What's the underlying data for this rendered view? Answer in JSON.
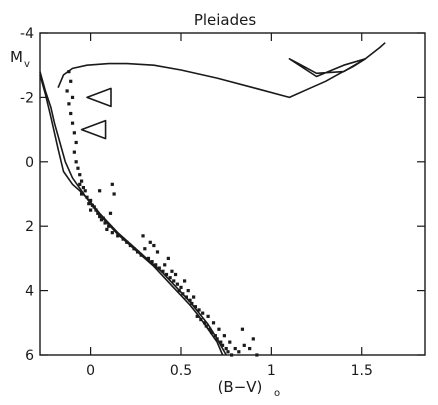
{
  "chart_data": {
    "type": "scatter",
    "title": "Pleiades",
    "xlabel": "(B−V)",
    "xlabel_subscript": "o",
    "ylabel": "M",
    "ylabel_subscript": "v",
    "xlim": [
      -0.28,
      1.85
    ],
    "ylim": [
      6,
      -4
    ],
    "y_inverted": true,
    "grid": false,
    "legend": "none",
    "x_ticks": [
      {
        "value": 0,
        "label": "0"
      },
      {
        "value": 0.5,
        "label": "0.5"
      },
      {
        "value": 1,
        "label": "1"
      },
      {
        "value": 1.5,
        "label": "1.5"
      }
    ],
    "y_ticks": [
      {
        "value": -4,
        "label": "-4"
      },
      {
        "value": -2,
        "label": "-2"
      },
      {
        "value": 0,
        "label": "0"
      },
      {
        "value": 2,
        "label": "2"
      },
      {
        "value": 4,
        "label": "4"
      },
      {
        "value": 6,
        "label": "6"
      }
    ],
    "series": [
      {
        "kind": "points",
        "color": "#1a1a1a",
        "points": [
          [
            -0.12,
            -2.8
          ],
          [
            -0.11,
            -2.5
          ],
          [
            -0.13,
            -2.2
          ],
          [
            -0.1,
            -2.0
          ],
          [
            -0.12,
            -1.8
          ],
          [
            -0.11,
            -1.5
          ],
          [
            -0.1,
            -1.2
          ],
          [
            -0.09,
            -0.9
          ],
          [
            -0.08,
            -0.6
          ],
          [
            -0.09,
            -0.3
          ],
          [
            -0.08,
            0.0
          ],
          [
            -0.07,
            0.2
          ],
          [
            -0.06,
            0.4
          ],
          [
            -0.05,
            0.6
          ],
          [
            -0.06,
            0.7
          ],
          [
            -0.04,
            0.8
          ],
          [
            -0.03,
            0.9
          ],
          [
            -0.05,
            1.0
          ],
          [
            -0.02,
            1.1
          ],
          [
            0.0,
            1.2
          ],
          [
            -0.01,
            1.3
          ],
          [
            0.01,
            1.35
          ],
          [
            0.02,
            1.4
          ],
          [
            0.0,
            1.5
          ],
          [
            0.03,
            1.5
          ],
          [
            0.04,
            1.6
          ],
          [
            0.05,
            1.7
          ],
          [
            0.06,
            1.8
          ],
          [
            0.07,
            1.75
          ],
          [
            0.08,
            1.9
          ],
          [
            0.1,
            2.0
          ],
          [
            0.09,
            2.1
          ],
          [
            0.12,
            2.2
          ],
          [
            0.11,
            1.6
          ],
          [
            0.13,
            1.0
          ],
          [
            0.12,
            0.7
          ],
          [
            0.05,
            0.9
          ],
          [
            0.15,
            2.3
          ],
          [
            0.18,
            2.4
          ],
          [
            0.2,
            2.5
          ],
          [
            0.22,
            2.6
          ],
          [
            0.24,
            2.7
          ],
          [
            0.26,
            2.8
          ],
          [
            0.28,
            2.9
          ],
          [
            0.3,
            2.7
          ],
          [
            0.32,
            3.0
          ],
          [
            0.34,
            3.1
          ],
          [
            0.36,
            3.2
          ],
          [
            0.33,
            2.5
          ],
          [
            0.35,
            2.6
          ],
          [
            0.38,
            3.3
          ],
          [
            0.4,
            3.4
          ],
          [
            0.42,
            3.5
          ],
          [
            0.41,
            3.2
          ],
          [
            0.44,
            3.6
          ],
          [
            0.45,
            3.4
          ],
          [
            0.46,
            3.7
          ],
          [
            0.48,
            3.8
          ],
          [
            0.47,
            3.5
          ],
          [
            0.5,
            3.9
          ],
          [
            0.49,
            4.0
          ],
          [
            0.51,
            4.1
          ],
          [
            0.52,
            3.7
          ],
          [
            0.53,
            4.2
          ],
          [
            0.55,
            4.3
          ],
          [
            0.54,
            4.0
          ],
          [
            0.56,
            4.4
          ],
          [
            0.58,
            4.5
          ],
          [
            0.57,
            4.2
          ],
          [
            0.6,
            4.6
          ],
          [
            0.59,
            4.8
          ],
          [
            0.61,
            4.9
          ],
          [
            0.62,
            4.7
          ],
          [
            0.63,
            5.0
          ],
          [
            0.64,
            5.1
          ],
          [
            0.65,
            4.8
          ],
          [
            0.66,
            5.2
          ],
          [
            0.67,
            5.3
          ],
          [
            0.68,
            5.0
          ],
          [
            0.69,
            5.4
          ],
          [
            0.7,
            5.5
          ],
          [
            0.71,
            5.2
          ],
          [
            0.72,
            5.6
          ],
          [
            0.73,
            5.7
          ],
          [
            0.74,
            5.4
          ],
          [
            0.75,
            5.8
          ],
          [
            0.76,
            5.9
          ],
          [
            0.77,
            5.6
          ],
          [
            0.78,
            6.0
          ],
          [
            0.8,
            5.8
          ],
          [
            0.82,
            5.9
          ],
          [
            0.85,
            5.7
          ],
          [
            0.88,
            5.8
          ],
          [
            0.84,
            5.2
          ],
          [
            0.9,
            5.5
          ],
          [
            0.92,
            6.0
          ],
          [
            0.37,
            2.8
          ],
          [
            0.43,
            3.0
          ],
          [
            0.29,
            2.3
          ]
        ]
      },
      {
        "kind": "line",
        "name": "",
        "color": "#1a1a1a",
        "points": [
          [
            -0.28,
            -2.7
          ],
          [
            -0.25,
            -2.1
          ],
          [
            -0.22,
            -1.4
          ],
          [
            -0.18,
            -0.4
          ],
          [
            -0.15,
            0.3
          ],
          [
            -0.1,
            0.7
          ],
          [
            -0.05,
            0.95
          ],
          [
            0.0,
            1.25
          ],
          [
            0.05,
            1.6
          ],
          [
            0.1,
            1.9
          ],
          [
            0.15,
            2.2
          ],
          [
            0.2,
            2.45
          ],
          [
            0.25,
            2.7
          ],
          [
            0.3,
            2.95
          ],
          [
            0.35,
            3.2
          ],
          [
            0.4,
            3.45
          ],
          [
            0.45,
            3.75
          ],
          [
            0.5,
            4.05
          ],
          [
            0.55,
            4.35
          ],
          [
            0.6,
            4.7
          ],
          [
            0.65,
            5.05
          ],
          [
            0.7,
            5.5
          ],
          [
            0.75,
            6.0
          ]
        ]
      },
      {
        "kind": "line",
        "name": "",
        "color": "#1a1a1a",
        "points": [
          [
            -0.28,
            -2.8
          ],
          [
            -0.25,
            -2.2
          ],
          [
            -0.22,
            -1.7
          ],
          [
            -0.2,
            -1.2
          ],
          [
            -0.17,
            -0.6
          ],
          [
            -0.14,
            0.0
          ],
          [
            -0.1,
            0.5
          ],
          [
            -0.05,
            0.9
          ],
          [
            0.0,
            1.3
          ],
          [
            0.05,
            1.65
          ],
          [
            0.1,
            1.95
          ],
          [
            0.15,
            2.25
          ],
          [
            0.2,
            2.5
          ],
          [
            0.25,
            2.75
          ],
          [
            0.3,
            3.0
          ],
          [
            0.35,
            3.25
          ],
          [
            0.4,
            3.55
          ],
          [
            0.45,
            3.85
          ],
          [
            0.5,
            4.15
          ],
          [
            0.55,
            4.45
          ],
          [
            0.6,
            4.8
          ],
          [
            0.65,
            5.2
          ],
          [
            0.7,
            5.6
          ],
          [
            0.73,
            6.0
          ]
        ]
      },
      {
        "kind": "line",
        "name": "",
        "color": "#1a1a1a",
        "points": [
          [
            -0.18,
            -2.3
          ],
          [
            -0.15,
            -2.7
          ],
          [
            -0.1,
            -2.9
          ],
          [
            -0.02,
            -3.0
          ],
          [
            0.1,
            -3.05
          ],
          [
            0.2,
            -3.05
          ],
          [
            0.35,
            -3.0
          ],
          [
            0.5,
            -2.85
          ],
          [
            0.7,
            -2.6
          ],
          [
            0.9,
            -2.3
          ],
          [
            1.1,
            -2.0
          ],
          [
            1.2,
            -2.25
          ],
          [
            1.3,
            -2.5
          ],
          [
            1.38,
            -2.75
          ],
          [
            1.45,
            -2.95
          ],
          [
            1.52,
            -3.2
          ],
          [
            1.6,
            -3.55
          ],
          [
            1.63,
            -3.7
          ]
        ]
      },
      {
        "kind": "line",
        "name": "",
        "color": "#1a1a1a",
        "points": [
          [
            1.52,
            -3.2
          ],
          [
            1.4,
            -3.0
          ],
          [
            1.25,
            -2.65
          ],
          [
            1.1,
            -3.2
          ],
          [
            1.15,
            -3.05
          ],
          [
            1.25,
            -2.75
          ],
          [
            1.4,
            -2.8
          ],
          [
            1.52,
            -3.2
          ]
        ]
      }
    ],
    "markers": [
      {
        "type": "triangle-left",
        "value": [
          -0.02,
          -2.0
        ]
      },
      {
        "type": "triangle-left",
        "value": [
          -0.05,
          -1.0
        ]
      }
    ]
  }
}
